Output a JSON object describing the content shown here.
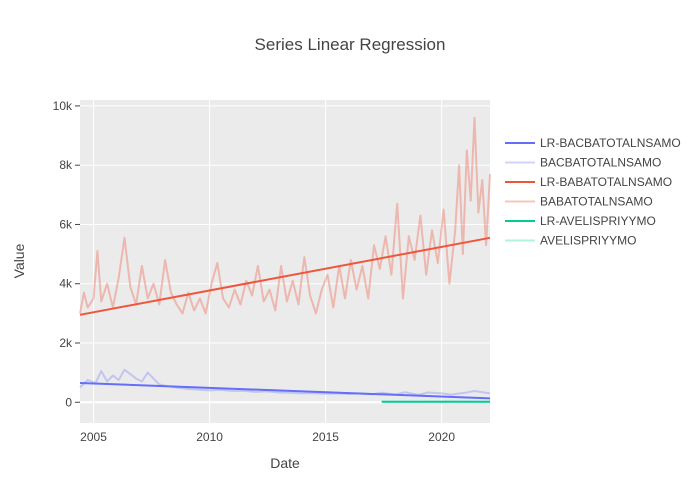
{
  "chart_data": {
    "type": "line",
    "title": "Series Linear Regression",
    "xlabel": "Date",
    "ylabel": "Value",
    "xlim": [
      "2004-06-01",
      "2022-02-01"
    ],
    "ylim": [
      -700,
      10200
    ],
    "x_ticks": [
      2005,
      2010,
      2015,
      2020
    ],
    "y_ticks": [
      {
        "value": 0,
        "label": "0"
      },
      {
        "value": 2000,
        "label": "2k"
      },
      {
        "value": 4000,
        "label": "4k"
      },
      {
        "value": 6000,
        "label": "6k"
      },
      {
        "value": 8000,
        "label": "8k"
      },
      {
        "value": 10000,
        "label": "10k"
      }
    ],
    "grid": true,
    "plot_background": "#ebebeb",
    "legend_position": "right",
    "series": [
      {
        "name": "LR-BACBATOTALNSAMO",
        "kind": "regression",
        "color": "#636efa",
        "points": [
          [
            "2004-06",
            650
          ],
          [
            "2022-02",
            130
          ]
        ]
      },
      {
        "name": "BACBATOTALNSAMO",
        "kind": "raw",
        "color": "#636efa",
        "opacity": 0.3,
        "points": [
          [
            "2004-06",
            500
          ],
          [
            "2004-10",
            750
          ],
          [
            "2005-02",
            650
          ],
          [
            "2005-05",
            1050
          ],
          [
            "2005-08",
            700
          ],
          [
            "2005-11",
            900
          ],
          [
            "2006-02",
            750
          ],
          [
            "2006-05",
            1100
          ],
          [
            "2006-08",
            950
          ],
          [
            "2006-11",
            800
          ],
          [
            "2007-02",
            700
          ],
          [
            "2007-05",
            1000
          ],
          [
            "2007-08",
            800
          ],
          [
            "2007-11",
            600
          ],
          [
            "2008-03",
            550
          ],
          [
            "2008-07",
            500
          ],
          [
            "2009-01",
            450
          ],
          [
            "2009-06",
            430
          ],
          [
            "2010-01",
            400
          ],
          [
            "2010-06",
            420
          ],
          [
            "2011-01",
            380
          ],
          [
            "2011-06",
            390
          ],
          [
            "2012-01",
            350
          ],
          [
            "2012-06",
            370
          ],
          [
            "2013-01",
            330
          ],
          [
            "2013-06",
            320
          ],
          [
            "2014-01",
            300
          ],
          [
            "2014-06",
            310
          ],
          [
            "2015-01",
            290
          ],
          [
            "2015-06",
            300
          ],
          [
            "2016-01",
            280
          ],
          [
            "2016-06",
            300
          ],
          [
            "2017-01",
            270
          ],
          [
            "2017-06",
            320
          ],
          [
            "2018-01",
            260
          ],
          [
            "2018-06",
            340
          ],
          [
            "2019-01",
            250
          ],
          [
            "2019-06",
            330
          ],
          [
            "2020-01",
            300
          ],
          [
            "2020-06",
            260
          ],
          [
            "2021-01",
            320
          ],
          [
            "2021-06",
            380
          ],
          [
            "2022-02",
            300
          ]
        ]
      },
      {
        "name": "LR-BABATOTALNSAMO",
        "kind": "regression",
        "color": "#ef553b",
        "points": [
          [
            "2004-06",
            2950
          ],
          [
            "2022-02",
            5550
          ]
        ]
      },
      {
        "name": "BABATOTALNSAMO",
        "kind": "raw",
        "color": "#ef553b",
        "opacity": 0.35,
        "points": [
          [
            "2004-06",
            3000
          ],
          [
            "2004-08",
            3700
          ],
          [
            "2004-10",
            3200
          ],
          [
            "2005-01",
            3500
          ],
          [
            "2005-03",
            5100
          ],
          [
            "2005-05",
            3400
          ],
          [
            "2005-08",
            4000
          ],
          [
            "2005-11",
            3200
          ],
          [
            "2006-02",
            4200
          ],
          [
            "2006-05",
            5550
          ],
          [
            "2006-08",
            3900
          ],
          [
            "2006-11",
            3300
          ],
          [
            "2007-02",
            4600
          ],
          [
            "2007-05",
            3500
          ],
          [
            "2007-08",
            4000
          ],
          [
            "2007-11",
            3300
          ],
          [
            "2008-02",
            4800
          ],
          [
            "2008-05",
            3700
          ],
          [
            "2008-08",
            3300
          ],
          [
            "2008-11",
            3000
          ],
          [
            "2009-02",
            3700
          ],
          [
            "2009-05",
            3100
          ],
          [
            "2009-08",
            3500
          ],
          [
            "2009-11",
            3000
          ],
          [
            "2010-02",
            4000
          ],
          [
            "2010-05",
            4700
          ],
          [
            "2010-08",
            3500
          ],
          [
            "2010-11",
            3200
          ],
          [
            "2011-02",
            3800
          ],
          [
            "2011-05",
            3300
          ],
          [
            "2011-08",
            4100
          ],
          [
            "2011-11",
            3600
          ],
          [
            "2012-02",
            4600
          ],
          [
            "2012-05",
            3400
          ],
          [
            "2012-08",
            3800
          ],
          [
            "2012-11",
            3100
          ],
          [
            "2013-02",
            4600
          ],
          [
            "2013-05",
            3400
          ],
          [
            "2013-08",
            4100
          ],
          [
            "2013-11",
            3300
          ],
          [
            "2014-02",
            4900
          ],
          [
            "2014-05",
            3600
          ],
          [
            "2014-08",
            3000
          ],
          [
            "2014-11",
            3800
          ],
          [
            "2015-02",
            4300
          ],
          [
            "2015-05",
            3200
          ],
          [
            "2015-08",
            4600
          ],
          [
            "2015-11",
            3500
          ],
          [
            "2016-02",
            4800
          ],
          [
            "2016-05",
            3800
          ],
          [
            "2016-08",
            4600
          ],
          [
            "2016-11",
            3500
          ],
          [
            "2017-02",
            5300
          ],
          [
            "2017-05",
            4500
          ],
          [
            "2017-08",
            5600
          ],
          [
            "2017-11",
            4300
          ],
          [
            "2018-02",
            6700
          ],
          [
            "2018-05",
            3500
          ],
          [
            "2018-08",
            5600
          ],
          [
            "2018-11",
            4800
          ],
          [
            "2019-02",
            6300
          ],
          [
            "2019-05",
            4300
          ],
          [
            "2019-08",
            5800
          ],
          [
            "2019-11",
            4700
          ],
          [
            "2020-02",
            6500
          ],
          [
            "2020-05",
            4000
          ],
          [
            "2020-08",
            5800
          ],
          [
            "2020-10",
            8000
          ],
          [
            "2020-12",
            5000
          ],
          [
            "2021-02",
            8500
          ],
          [
            "2021-04",
            6800
          ],
          [
            "2021-06",
            9600
          ],
          [
            "2021-08",
            6400
          ],
          [
            "2021-10",
            7500
          ],
          [
            "2021-12",
            5300
          ],
          [
            "2022-02",
            7700
          ]
        ]
      },
      {
        "name": "LR-AVELISPRIYYMO",
        "kind": "regression",
        "color": "#00cc96",
        "points": [
          [
            "2017-06",
            20
          ],
          [
            "2022-02",
            20
          ]
        ]
      },
      {
        "name": "AVELISPRIYYMO",
        "kind": "raw",
        "color": "#00cc96",
        "opacity": 0.3,
        "points": [
          [
            "2017-06",
            15
          ],
          [
            "2018-06",
            20
          ],
          [
            "2019-06",
            15
          ],
          [
            "2020-06",
            25
          ],
          [
            "2021-06",
            20
          ],
          [
            "2022-02",
            20
          ]
        ]
      }
    ]
  }
}
